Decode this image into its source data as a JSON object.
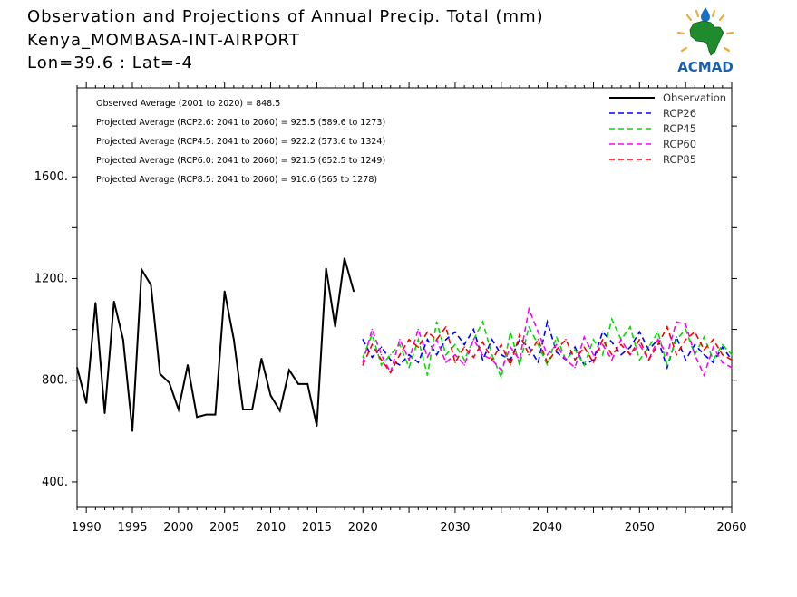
{
  "header": {
    "title": "Observation and Projections of Annual Precip. Total (mm)",
    "station": "Kenya_MOMBASA-INT-AIRPORT",
    "coords": "Lon=39.6 : Lat=-4"
  },
  "logo": {
    "text": "ACMAD",
    "icon": "africa-map-logo"
  },
  "colors": {
    "Observation": "#000000",
    "RCP26": "#0000ff",
    "RCP45": "#00dd00",
    "RCP60": "#ff00ff",
    "RCP85": "#ff0000"
  },
  "annotations": [
    "Observed Average (2001 to 2020) = 848.5",
    "Projected Average (RCP2.6: 2041 to 2060) = 925.5 (589.6 to 1273)",
    "Projected Average (RCP4.5: 2041 to 2060) = 922.2 (573.6 to 1324)",
    "Projected Average (RCP6.0: 2041 to 2060) = 921.5 (652.5 to 1249)",
    "Projected Average (RCP8.5: 2041 to 2060) = 910.6 (565 to 1278)"
  ],
  "chart_data": {
    "type": "line",
    "title": "Observation and Projections of Annual Precip. Total (mm)",
    "xlim": [
      1989,
      2060
    ],
    "ylim": [
      300,
      1950
    ],
    "y_ticks": [
      400,
      800,
      1200,
      1600
    ],
    "y_tick_labels": [
      "400.",
      "800.",
      "1200.",
      "1600."
    ],
    "x_ticks": [
      1990,
      1995,
      2000,
      2005,
      2010,
      2015,
      2020,
      2030,
      2040,
      2050,
      2060
    ],
    "x_tick_labels": [
      "1990",
      "1995",
      "2000",
      "2005",
      "2010",
      "2015",
      "2020",
      "2030",
      "2040",
      "2050",
      "2060"
    ],
    "legend_position": "top-right",
    "grid": false,
    "series": [
      {
        "name": "Observation",
        "style": "solid",
        "x": [
          1989,
          1990,
          1991,
          1992,
          1993,
          1994,
          1995,
          1996,
          1997,
          1998,
          1999,
          2000,
          2001,
          2002,
          2003,
          2004,
          2005,
          2006,
          2007,
          2008,
          2009,
          2010,
          2011,
          2012,
          2013,
          2014,
          2015,
          2016,
          2017,
          2018,
          2019,
          2020
        ],
        "values": [
          850,
          710,
          1105,
          670,
          1110,
          960,
          600,
          1235,
          1175,
          825,
          790,
          685,
          860,
          655,
          665,
          665,
          1150,
          960,
          685,
          685,
          885,
          740,
          680,
          840,
          785,
          785,
          620,
          1240,
          1010,
          1280,
          1150,
          null
        ]
      },
      {
        "name": "RCP26",
        "style": "dashed",
        "x": [
          2020,
          2021,
          2022,
          2023,
          2024,
          2025,
          2026,
          2027,
          2028,
          2029,
          2030,
          2031,
          2032,
          2033,
          2034,
          2035,
          2036,
          2037,
          2038,
          2039,
          2040,
          2041,
          2042,
          2043,
          2044,
          2045,
          2046,
          2047,
          2048,
          2049,
          2050,
          2051,
          2052,
          2053,
          2054,
          2055,
          2056,
          2057,
          2058,
          2059,
          2060
        ],
        "values": [
          960,
          890,
          930,
          880,
          860,
          900,
          870,
          960,
          900,
          960,
          990,
          940,
          1000,
          880,
          960,
          900,
          880,
          960,
          930,
          870,
          1030,
          910,
          880,
          930,
          860,
          880,
          990,
          950,
          900,
          930,
          990,
          920,
          960,
          850,
          970,
          880,
          940,
          900,
          870,
          930,
          880
        ]
      },
      {
        "name": "RCP45",
        "style": "dashed",
        "x": [
          2020,
          2021,
          2022,
          2023,
          2024,
          2025,
          2026,
          2027,
          2028,
          2029,
          2030,
          2031,
          2032,
          2033,
          2034,
          2035,
          2036,
          2037,
          2038,
          2039,
          2040,
          2041,
          2042,
          2043,
          2044,
          2045,
          2046,
          2047,
          2048,
          2049,
          2050,
          2051,
          2052,
          2053,
          2054,
          2055,
          2056,
          2057,
          2058,
          2059,
          2060
        ],
        "values": [
          890,
          980,
          860,
          900,
          940,
          850,
          960,
          820,
          1030,
          900,
          940,
          880,
          960,
          1030,
          900,
          810,
          990,
          860,
          1010,
          940,
          860,
          970,
          880,
          920,
          860,
          960,
          900,
          1040,
          960,
          1010,
          880,
          930,
          990,
          860,
          960,
          1000,
          900,
          970,
          880,
          940,
          900
        ]
      },
      {
        "name": "RCP60",
        "style": "dashed",
        "x": [
          2020,
          2021,
          2022,
          2023,
          2024,
          2025,
          2026,
          2027,
          2028,
          2029,
          2030,
          2031,
          2032,
          2033,
          2034,
          2035,
          2036,
          2037,
          2038,
          2039,
          2040,
          2041,
          2042,
          2043,
          2044,
          2045,
          2046,
          2047,
          2048,
          2049,
          2050,
          2051,
          2052,
          2053,
          2054,
          2055,
          2056,
          2057,
          2058,
          2059,
          2060
        ],
        "values": [
          870,
          1000,
          900,
          830,
          960,
          880,
          1000,
          890,
          960,
          870,
          900,
          860,
          960,
          900,
          880,
          840,
          930,
          880,
          1080,
          990,
          900,
          940,
          880,
          850,
          970,
          900,
          940,
          880,
          960,
          900,
          940,
          880,
          960,
          900,
          1030,
          1020,
          900,
          820,
          930,
          870,
          850
        ]
      },
      {
        "name": "RCP85",
        "style": "dashed",
        "x": [
          2020,
          2021,
          2022,
          2023,
          2024,
          2025,
          2026,
          2027,
          2028,
          2029,
          2030,
          2031,
          2032,
          2033,
          2034,
          2035,
          2036,
          2037,
          2038,
          2039,
          2040,
          2041,
          2042,
          2043,
          2044,
          2045,
          2046,
          2047,
          2048,
          2049,
          2050,
          2051,
          2052,
          2053,
          2054,
          2055,
          2056,
          2057,
          2058,
          2059,
          2060
        ],
        "values": [
          860,
          940,
          880,
          830,
          900,
          960,
          930,
          990,
          960,
          1010,
          870,
          930,
          890,
          950,
          880,
          940,
          860,
          980,
          900,
          960,
          870,
          920,
          960,
          880,
          930,
          870,
          960,
          900,
          940,
          900,
          960,
          880,
          940,
          1010,
          900,
          960,
          990,
          920,
          960,
          900,
          880
        ]
      }
    ]
  }
}
